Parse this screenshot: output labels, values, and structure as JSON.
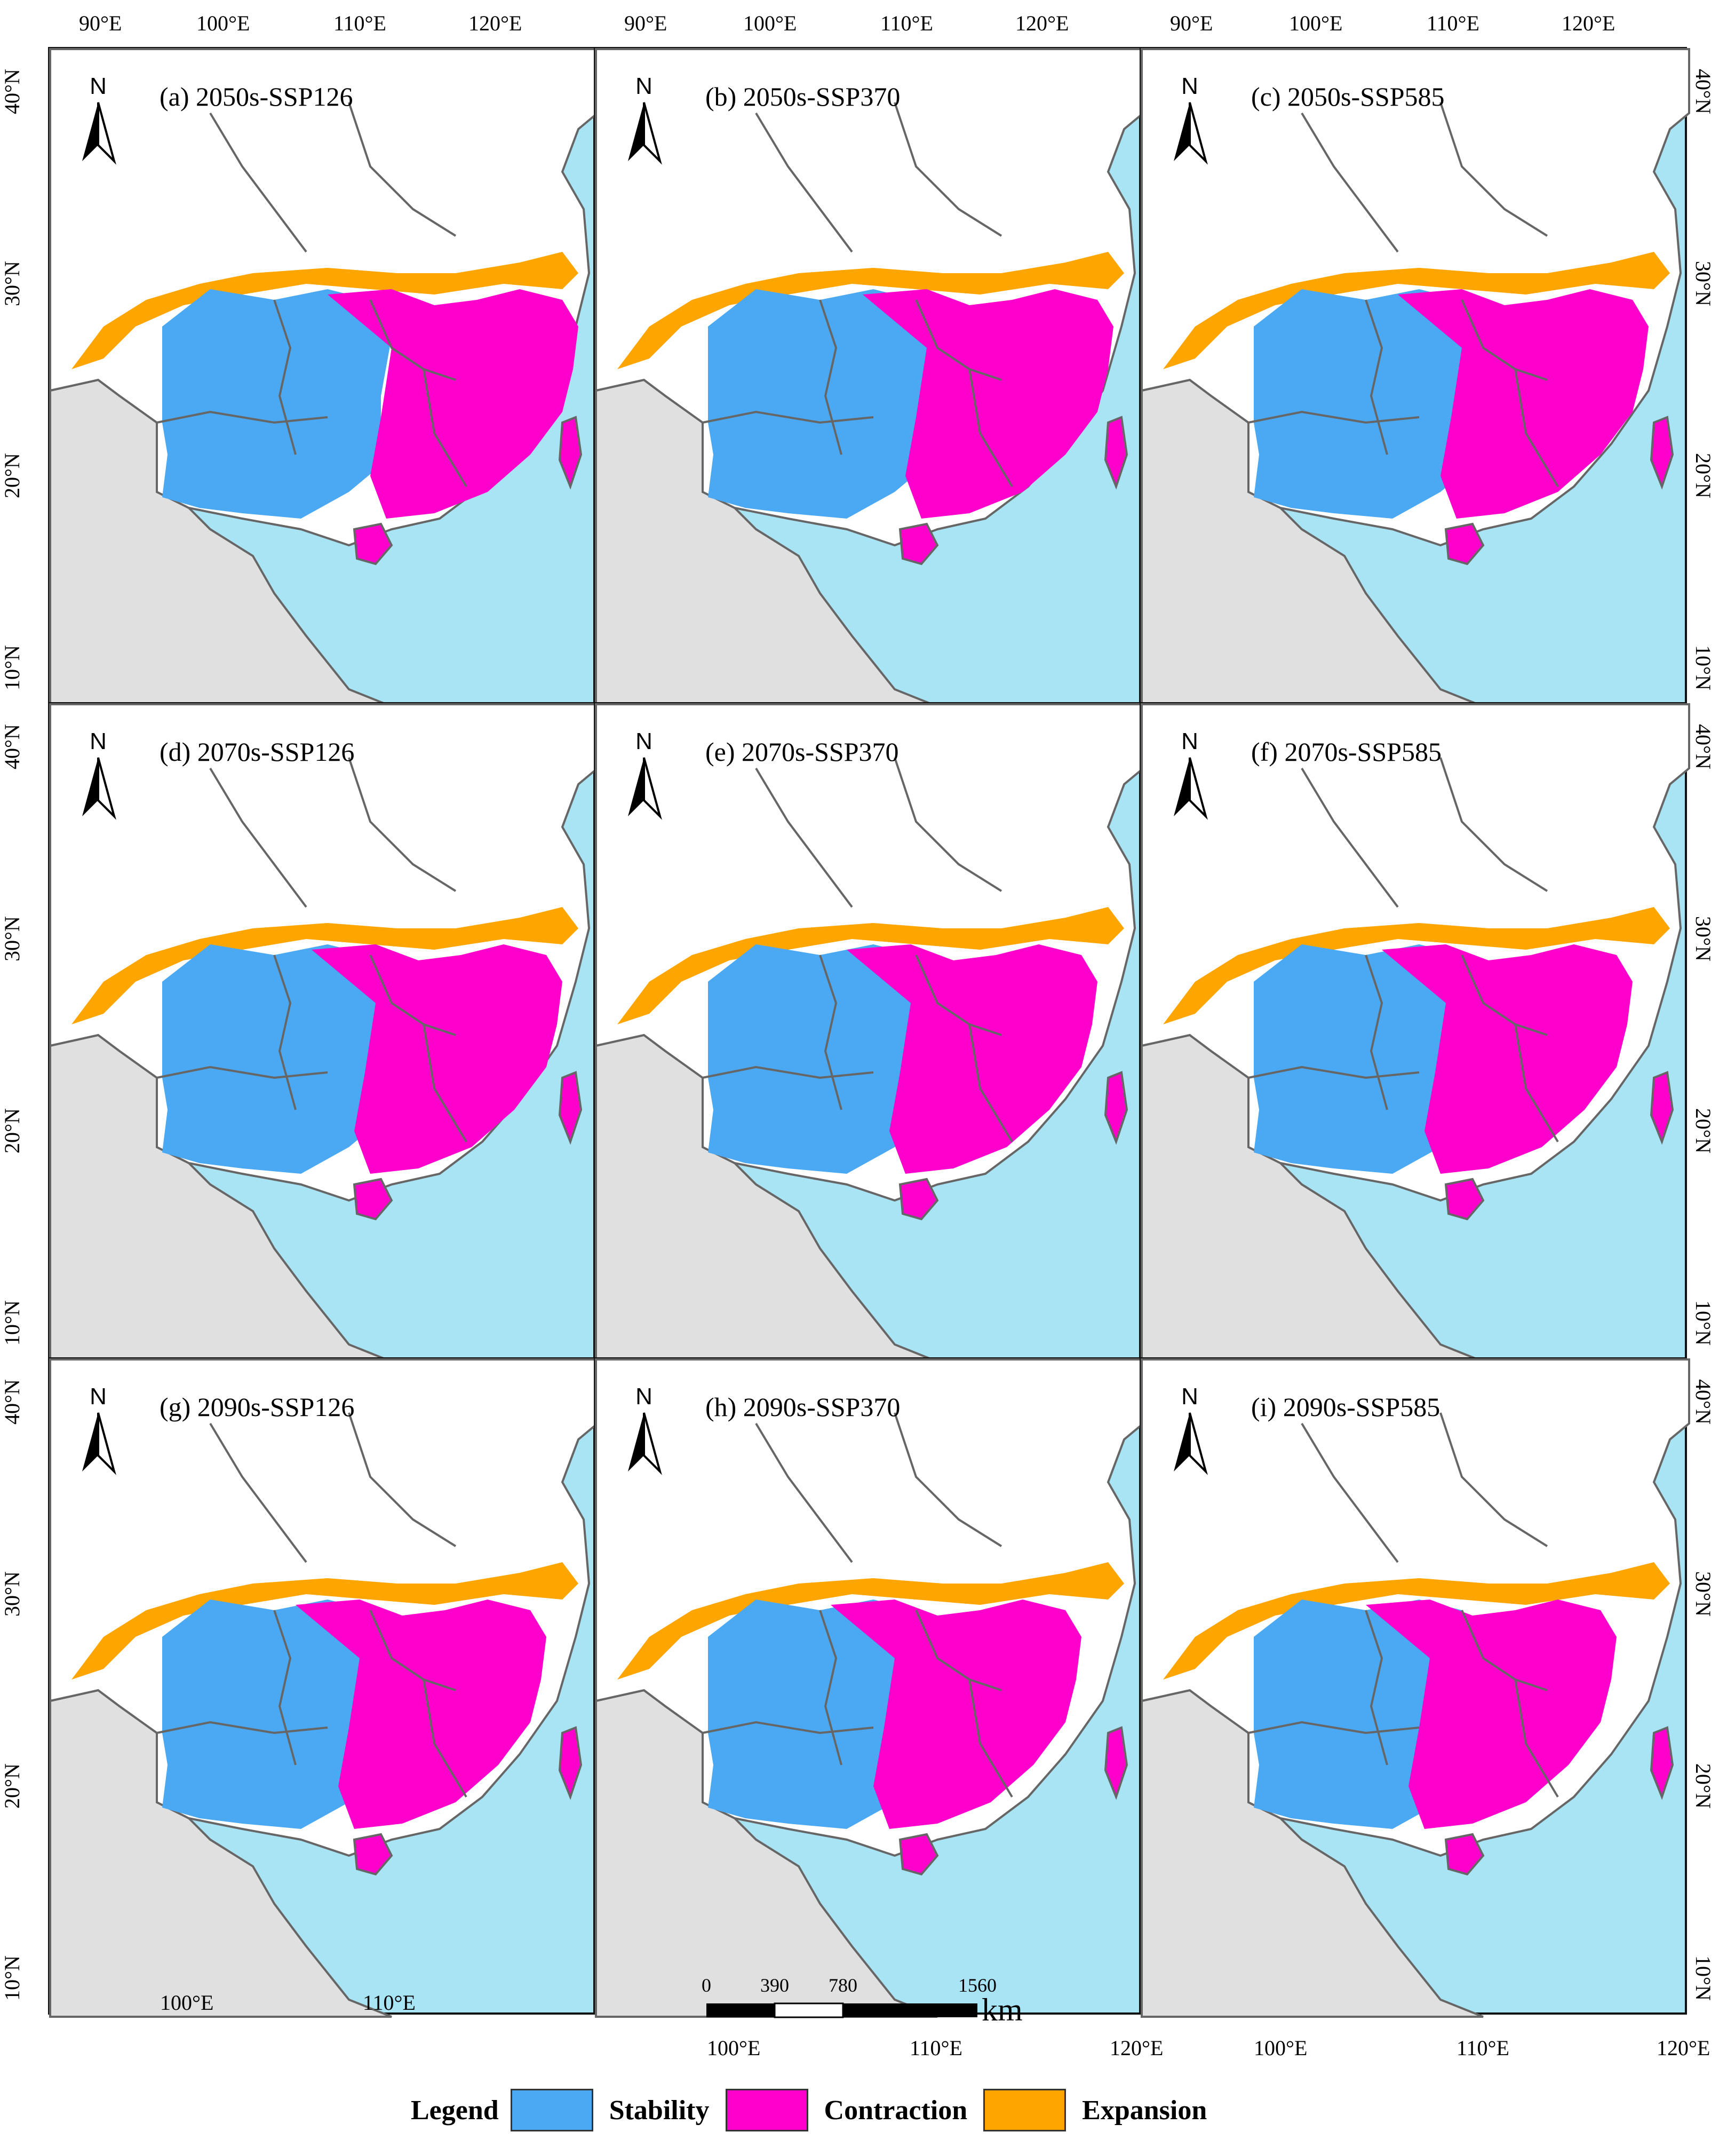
{
  "colors": {
    "stability": "#4aa9f2",
    "contraction": "#ff00cc",
    "expansion": "#ffa500",
    "sea": "#a9e4f5",
    "land": "#e0e0e0",
    "china": "#ffffff",
    "border": "#666666"
  },
  "axes": {
    "top_lon": [
      "90°E",
      "100°E",
      "110°E",
      "120°E"
    ],
    "bottom_lon_col1": [
      "100°E",
      "110°E"
    ],
    "bottom_lon_col2": [
      "100°E",
      "110°E",
      "120°E"
    ],
    "bottom_lon_col3": [
      "100°E",
      "110°E",
      "120°E"
    ],
    "lat": [
      "40°N",
      "30°N",
      "20°N",
      "10°N"
    ]
  },
  "panels": [
    {
      "title": "(a)  2050s-SSP126",
      "north": "N"
    },
    {
      "title": "(b)  2050s-SSP370",
      "north": "N"
    },
    {
      "title": "(c)  2050s-SSP585",
      "north": "N"
    },
    {
      "title": "(d)  2070s-SSP126",
      "north": "N"
    },
    {
      "title": "(e)  2070s-SSP370",
      "north": "N"
    },
    {
      "title": "(f)  2070s-SSP585",
      "north": "N"
    },
    {
      "title": "(g)  2090s-SSP126",
      "north": "N"
    },
    {
      "title": "(h)  2090s-SSP370",
      "north": "N"
    },
    {
      "title": "(i)  2090s-SSP585",
      "north": "N"
    }
  ],
  "scalebar": {
    "ticks": [
      "0",
      "390",
      "780",
      "1560"
    ],
    "unit": "km"
  },
  "legend": {
    "title": "Legend",
    "items": [
      {
        "label": "Stability",
        "color": "#4aa9f2"
      },
      {
        "label": "Contraction",
        "color": "#ff00cc"
      },
      {
        "label": "Expansion",
        "color": "#ffa500"
      }
    ]
  }
}
